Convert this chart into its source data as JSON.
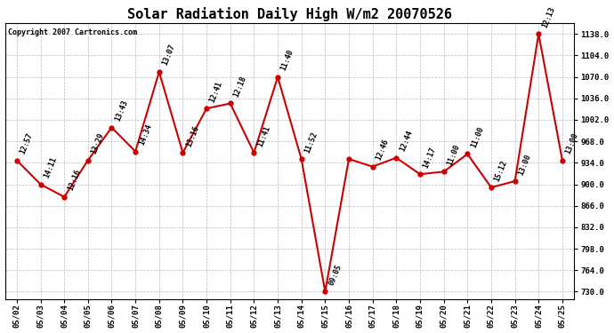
{
  "title": "Solar Radiation Daily High W/m2 20070526",
  "copyright": "Copyright 2007 Cartronics.com",
  "dates": [
    "05/02",
    "05/03",
    "05/04",
    "05/05",
    "05/06",
    "05/07",
    "05/08",
    "05/09",
    "05/10",
    "05/11",
    "05/12",
    "05/13",
    "05/14",
    "05/15",
    "05/16",
    "05/17",
    "05/18",
    "05/19",
    "05/20",
    "05/21",
    "05/22",
    "05/23",
    "05/24",
    "05/25"
  ],
  "values": [
    938,
    900,
    880,
    938,
    990,
    952,
    1078,
    950,
    1020,
    1028,
    950,
    1070,
    940,
    730,
    940,
    928,
    942,
    916,
    920,
    948,
    895,
    905,
    1138,
    938
  ],
  "labels": [
    "12:57",
    "14:11",
    "12:16",
    "13:29",
    "13:43",
    "14:34",
    "13:07",
    "13:16",
    "12:41",
    "12:18",
    "11:41",
    "11:40",
    "11:52",
    "09:05",
    "",
    "12:46",
    "12:44",
    "14:17",
    "11:00",
    "11:00",
    "15:12",
    "13:00",
    "12:13",
    "13:00"
  ],
  "yticks": [
    730.0,
    764.0,
    798.0,
    832.0,
    866.0,
    900.0,
    934.0,
    968.0,
    1002.0,
    1036.0,
    1070.0,
    1104.0,
    1138.0
  ],
  "line_color": "#cc0000",
  "bg_color": "#ffffff",
  "grid_color": "#bbbbbb",
  "title_fontsize": 11
}
